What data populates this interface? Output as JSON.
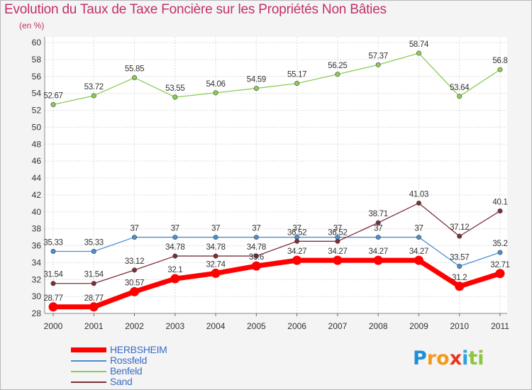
{
  "title": "Evolution du Taux de Taxe Foncière sur les Propriétés Non Bâties",
  "unit_label": "(en %)",
  "logo": {
    "text": "Proxiti",
    "letters": [
      {
        "ch": "P",
        "color": "#1e8ed6"
      },
      {
        "ch": "r",
        "color": "#f39a1c"
      },
      {
        "ch": "o",
        "color": "#f39a1c"
      },
      {
        "ch": "x",
        "color": "#e8361e"
      },
      {
        "ch": "i",
        "color": "#2ea2de"
      },
      {
        "ch": "t",
        "color": "#8cc63f"
      },
      {
        "ch": "i",
        "color": "#8cc63f"
      }
    ]
  },
  "chart_data": {
    "type": "line",
    "title": "Evolution du Taux de Taxe Foncière sur les Propriétés Non Bâties",
    "ylabel": "(en %)",
    "xlabel": "",
    "x": [
      "2000",
      "2001",
      "2002",
      "2003",
      "2004",
      "2005",
      "2006",
      "2007",
      "2008",
      "2009",
      "2010",
      "2011"
    ],
    "ylim": [
      28,
      60
    ],
    "yticks": [
      "28",
      "30",
      "32",
      "34",
      "36",
      "38",
      "40",
      "42",
      "44",
      "46",
      "48",
      "50",
      "52",
      "54",
      "56",
      "58",
      "60"
    ],
    "grid": true,
    "legend_position": "bottom-left",
    "series": [
      {
        "name": "HERBSHEIM",
        "color": "#ff0000",
        "values": [
          28.77,
          28.77,
          30.57,
          32.1,
          32.74,
          33.6,
          34.27,
          34.27,
          34.27,
          34.27,
          31.2,
          32.71
        ],
        "labels": [
          "28.77",
          "28.77",
          "30.57",
          "32.1",
          "32.74",
          "33.6",
          "34.27",
          "34.27",
          "34.27",
          "34.27",
          "31.2",
          "32.71"
        ]
      },
      {
        "name": "Rossfeld",
        "color": "#4a8fd0",
        "values": [
          35.33,
          35.33,
          37,
          37,
          37,
          37,
          37,
          37,
          37,
          37,
          33.57,
          35.2
        ],
        "labels": [
          "35.33",
          "35.33",
          "37",
          "37",
          "37",
          "37",
          "37",
          "37",
          "37",
          "37",
          "33.57",
          "35.2"
        ]
      },
      {
        "name": "Benfeld",
        "color": "#8acd55",
        "values": [
          52.67,
          53.72,
          55.85,
          53.55,
          54.06,
          54.59,
          55.17,
          56.25,
          57.37,
          58.74,
          53.64,
          56.8
        ],
        "labels": [
          "52.67",
          "53.72",
          "55.85",
          "53.55",
          "54.06",
          "54.59",
          "55.17",
          "56.25",
          "57.37",
          "58.74",
          "53.64",
          "56.8"
        ]
      },
      {
        "name": "Sand",
        "color": "#7d2e38",
        "values": [
          31.54,
          31.54,
          33.12,
          34.78,
          34.78,
          34.78,
          36.52,
          36.52,
          38.71,
          41.03,
          37.12,
          40.1
        ],
        "labels": [
          "31.54",
          "31.54",
          "33.12",
          "34.78",
          "34.78",
          "34.78",
          "36.52",
          "36.52",
          "38.71",
          "41.03",
          "37.12",
          "40.1"
        ]
      }
    ]
  }
}
